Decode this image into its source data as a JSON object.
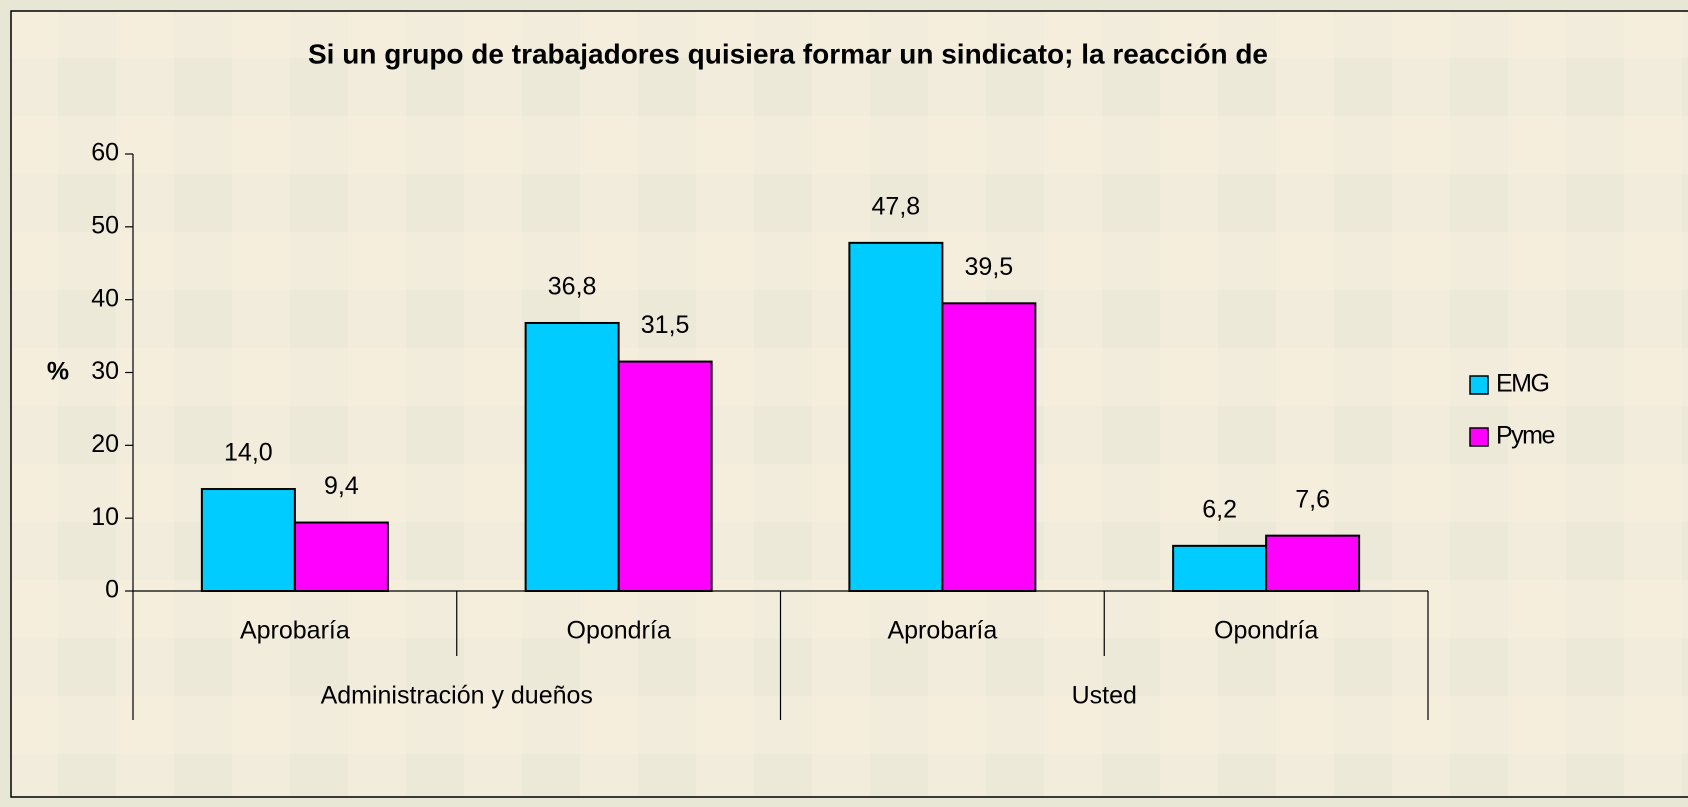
{
  "chart_data": {
    "type": "bar",
    "title": "Si un grupo de trabajadores quisiera formar un sindicato; la reacción de",
    "y_label": "%",
    "categories": [
      "Aprobaría",
      "Opondría",
      "Aprobaría",
      "Opondría"
    ],
    "groups": [
      "Administración y dueños",
      "Usted"
    ],
    "series": [
      {
        "name": "EMG",
        "color": "#00ccff",
        "values": [
          14.0,
          36.8,
          47.8,
          6.2
        ],
        "value_labels": [
          "14,0",
          "36,8",
          "47,8",
          "6,2"
        ]
      },
      {
        "name": "Pyme",
        "color": "#ff00ff",
        "values": [
          9.4,
          31.5,
          39.5,
          7.6
        ],
        "value_labels": [
          "9,4",
          "31,5",
          "39,5",
          "7,6"
        ]
      }
    ],
    "ylim": [
      0,
      60
    ],
    "yticks": [
      0,
      10,
      20,
      30,
      40,
      50,
      60
    ],
    "legend": "right"
  }
}
